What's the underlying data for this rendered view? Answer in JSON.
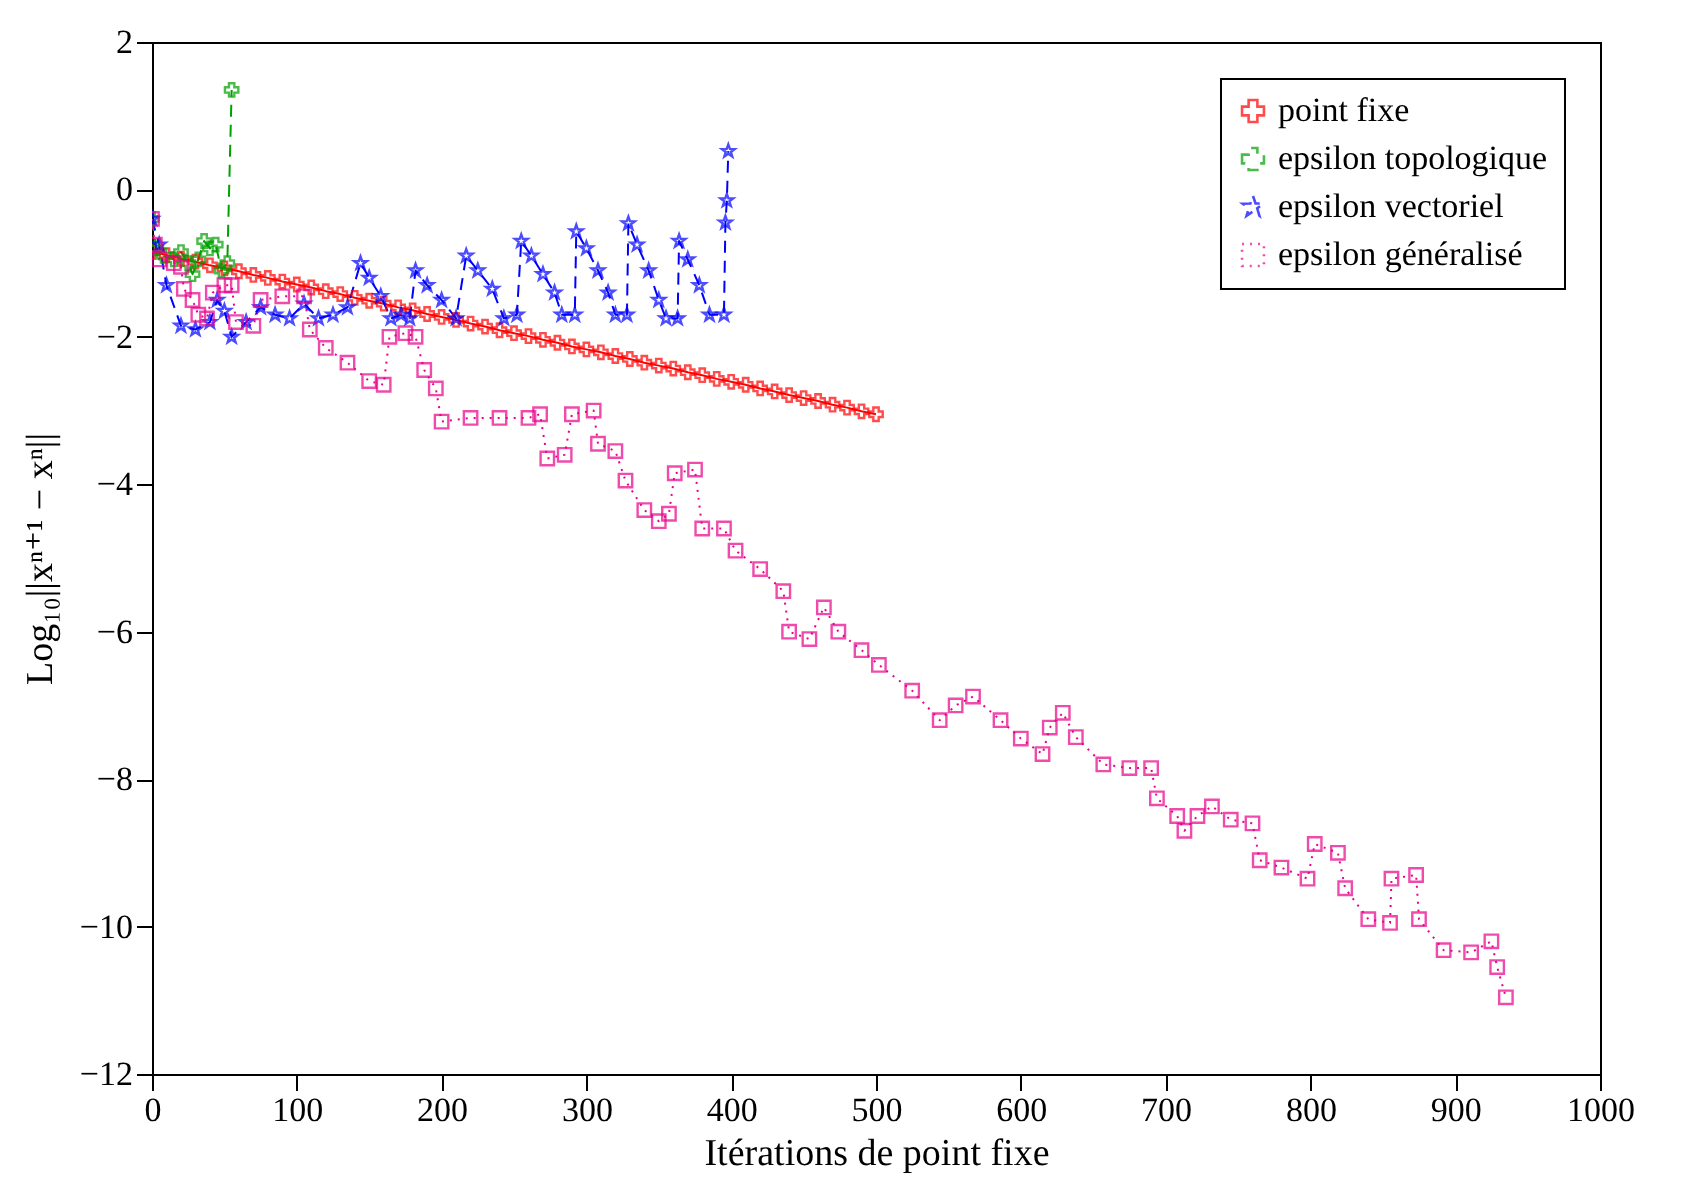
{
  "chart_data": {
    "type": "line",
    "xlabel": "Itérations de point fixe",
    "ylabel": "Log₁₀||xⁿ⁺¹ − xⁿ||",
    "xlim": [
      0,
      1000
    ],
    "ylim": [
      -12,
      2
    ],
    "xticks": [
      0,
      100,
      200,
      300,
      400,
      500,
      600,
      700,
      800,
      900,
      1000
    ],
    "yticks": [
      -12,
      -10,
      -8,
      -6,
      -4,
      -2,
      0,
      2
    ],
    "legend": "top right",
    "series": [
      {
        "name": "point fixe",
        "color": "#ff0000",
        "marker": "cross",
        "line_style": "solid",
        "x": [
          0,
          10,
          20,
          30,
          40,
          50,
          60,
          70,
          80,
          90,
          100,
          110,
          120,
          130,
          140,
          150,
          160,
          170,
          180,
          190,
          200,
          210,
          220,
          230,
          240,
          250,
          260,
          270,
          280,
          290,
          300,
          310,
          320,
          330,
          340,
          350,
          360,
          370,
          380,
          390,
          400,
          410,
          420,
          430,
          440,
          450,
          460,
          470,
          480,
          490,
          500
        ],
        "values": [
          -0.85,
          -0.89,
          -0.94,
          -0.98,
          -1.03,
          -1.07,
          -1.11,
          -1.16,
          -1.2,
          -1.25,
          -1.29,
          -1.33,
          -1.38,
          -1.42,
          -1.47,
          -1.51,
          -1.55,
          -1.6,
          -1.64,
          -1.69,
          -1.73,
          -1.77,
          -1.82,
          -1.86,
          -1.91,
          -1.95,
          -1.99,
          -2.04,
          -2.08,
          -2.13,
          -2.17,
          -2.21,
          -2.26,
          -2.3,
          -2.35,
          -2.39,
          -2.43,
          -2.48,
          -2.52,
          -2.57,
          -2.61,
          -2.65,
          -2.7,
          -2.74,
          -2.79,
          -2.83,
          -2.87,
          -2.92,
          -2.96,
          -3.01,
          -3.05
        ]
      },
      {
        "name": "epsilon topologique",
        "color": "#00a000",
        "marker": "cross",
        "line_style": "dashed",
        "x": [
          0,
          3,
          8,
          15,
          20,
          25,
          28,
          32,
          36,
          40,
          44,
          48,
          52,
          55
        ],
        "values": [
          -0.4,
          -0.8,
          -0.9,
          -0.95,
          -0.85,
          -1.0,
          -1.15,
          -0.95,
          -0.7,
          -0.8,
          -0.75,
          -1.1,
          -1.0,
          1.35
        ]
      },
      {
        "name": "epsilon vectoriel",
        "color": "#0000ff",
        "marker": "star",
        "line_style": "dashed",
        "x": [
          0,
          5,
          10,
          20,
          30,
          40,
          45,
          50,
          55,
          65,
          75,
          85,
          95,
          105,
          115,
          125,
          135,
          144,
          150,
          158,
          165,
          172,
          178,
          182,
          190,
          200,
          210,
          217,
          225,
          235,
          243,
          252,
          255,
          262,
          270,
          278,
          283,
          292,
          293,
          300,
          308,
          315,
          320,
          328,
          329,
          335,
          343,
          350,
          355,
          363,
          364,
          370,
          378,
          385,
          395,
          396,
          397,
          398
        ],
        "values": [
          -0.4,
          -0.75,
          -1.3,
          -1.85,
          -1.9,
          -1.8,
          -1.5,
          -1.65,
          -2.0,
          -1.8,
          -1.6,
          -1.7,
          -1.75,
          -1.55,
          -1.75,
          -1.7,
          -1.6,
          -1.0,
          -1.2,
          -1.45,
          -1.75,
          -1.7,
          -1.75,
          -1.1,
          -1.3,
          -1.5,
          -1.75,
          -0.9,
          -1.1,
          -1.35,
          -1.75,
          -1.7,
          -0.7,
          -0.9,
          -1.15,
          -1.4,
          -1.7,
          -1.7,
          -0.57,
          -0.8,
          -1.1,
          -1.4,
          -1.7,
          -1.7,
          -0.46,
          -0.75,
          -1.1,
          -1.5,
          -1.75,
          -1.75,
          -0.7,
          -0.95,
          -1.3,
          -1.7,
          -1.7,
          -0.45,
          -0.15,
          0.52
        ]
      },
      {
        "name": "epsilon généralisé",
        "color": "#e8008a",
        "marker": "square",
        "line_style": "dotted",
        "x": [
          0,
          2,
          5,
          15,
          20,
          22,
          28,
          32,
          38,
          42,
          50,
          55,
          58,
          70,
          75,
          90,
          105,
          109,
          120,
          135,
          150,
          160,
          164,
          175,
          182,
          188,
          196,
          200,
          220,
          240,
          260,
          268,
          273,
          285,
          290,
          305,
          308,
          320,
          327,
          340,
          350,
          357,
          361,
          375,
          380,
          395,
          403,
          420,
          436,
          440,
          454,
          464,
          474,
          490,
          502,
          525,
          544,
          555,
          567,
          586,
          600,
          615,
          620,
          629,
          638,
          657,
          675,
          690,
          694,
          708,
          713,
          722,
          732,
          745,
          760,
          765,
          780,
          798,
          803,
          819,
          824,
          840,
          855,
          856,
          873,
          875,
          892,
          911,
          925,
          929,
          935
        ],
        "values": [
          -0.4,
          -0.75,
          -0.95,
          -1.0,
          -1.05,
          -1.35,
          -1.5,
          -1.7,
          -1.75,
          -1.4,
          -1.3,
          -1.3,
          -1.8,
          -1.85,
          -1.5,
          -1.45,
          -1.45,
          -1.9,
          -2.15,
          -2.35,
          -2.6,
          -2.65,
          -2.0,
          -1.95,
          -2.0,
          -2.45,
          -2.7,
          -3.15,
          -3.1,
          -3.1,
          -3.1,
          -3.05,
          -3.65,
          -3.6,
          -3.05,
          -3.0,
          -3.45,
          -3.55,
          -3.95,
          -4.35,
          -4.5,
          -4.4,
          -3.85,
          -3.8,
          -4.6,
          -4.6,
          -4.9,
          -5.15,
          -5.45,
          -6.0,
          -6.1,
          -5.67,
          -6.0,
          -6.25,
          -6.45,
          -6.8,
          -7.2,
          -7.0,
          -6.88,
          -7.2,
          -7.45,
          -7.66,
          -7.3,
          -7.1,
          -7.43,
          -7.8,
          -7.85,
          -7.85,
          -8.26,
          -8.5,
          -8.7,
          -8.5,
          -8.37,
          -8.55,
          -8.6,
          -9.1,
          -9.2,
          -9.35,
          -8.88,
          -9.0,
          -9.48,
          -9.9,
          -9.95,
          -9.35,
          -9.3,
          -9.9,
          -10.32,
          -10.35,
          -10.2,
          -10.55,
          -10.96
        ]
      }
    ]
  }
}
